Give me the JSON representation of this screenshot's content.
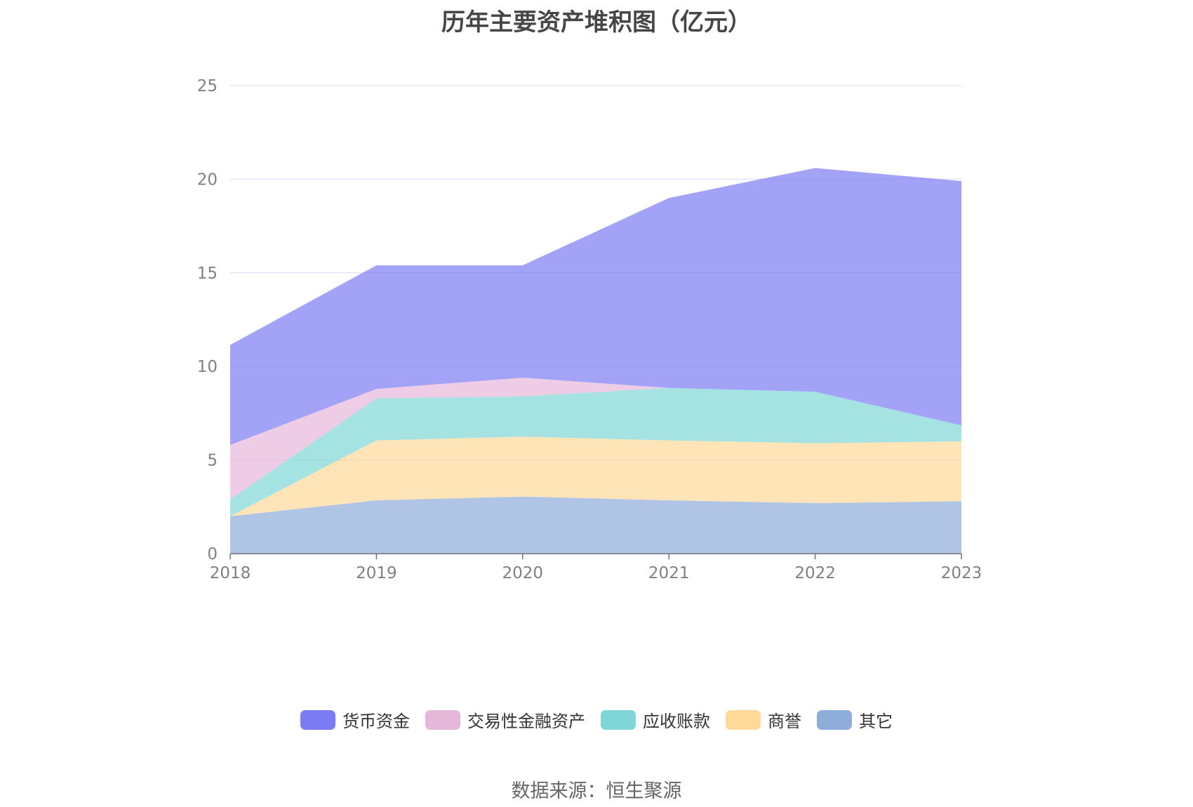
{
  "chart_data": {
    "type": "area",
    "stacked": true,
    "title": "历年主要资产堆积图（亿元）",
    "categories": [
      "2018",
      "2019",
      "2020",
      "2021",
      "2022",
      "2023"
    ],
    "ylim": [
      0,
      25
    ],
    "yticks": [
      0,
      5,
      10,
      15,
      20,
      25
    ],
    "xlabel": "",
    "ylabel": "",
    "grid": true,
    "legend_position": "bottom",
    "series": [
      {
        "name": "其它",
        "color": "#8eaddb",
        "values": [
          2.0,
          2.85,
          3.05,
          2.85,
          2.7,
          2.8
        ]
      },
      {
        "name": "商誉",
        "color": "#ffd998",
        "values": [
          0.0,
          3.2,
          3.2,
          3.2,
          3.2,
          3.2
        ]
      },
      {
        "name": "应收账款",
        "color": "#7fd6d6",
        "values": [
          0.9,
          2.25,
          2.15,
          2.8,
          2.75,
          0.85
        ]
      },
      {
        "name": "交易性金融资产",
        "color": "#e7b7da",
        "values": [
          2.9,
          0.5,
          1.0,
          0.0,
          0.0,
          0.0
        ]
      },
      {
        "name": "货币资金",
        "color": "#7b7cf4",
        "values": [
          5.35,
          6.6,
          6.0,
          10.15,
          11.95,
          13.05
        ]
      }
    ]
  },
  "legend": {
    "items": [
      {
        "label": "货币资金",
        "color": "#7b7cf4"
      },
      {
        "label": "交易性金融资产",
        "color": "#e7b7da"
      },
      {
        "label": "应收账款",
        "color": "#7fd6d6"
      },
      {
        "label": "商誉",
        "color": "#ffd998"
      },
      {
        "label": "其它",
        "color": "#8eaddb"
      }
    ]
  },
  "source": "数据来源：恒生聚源"
}
